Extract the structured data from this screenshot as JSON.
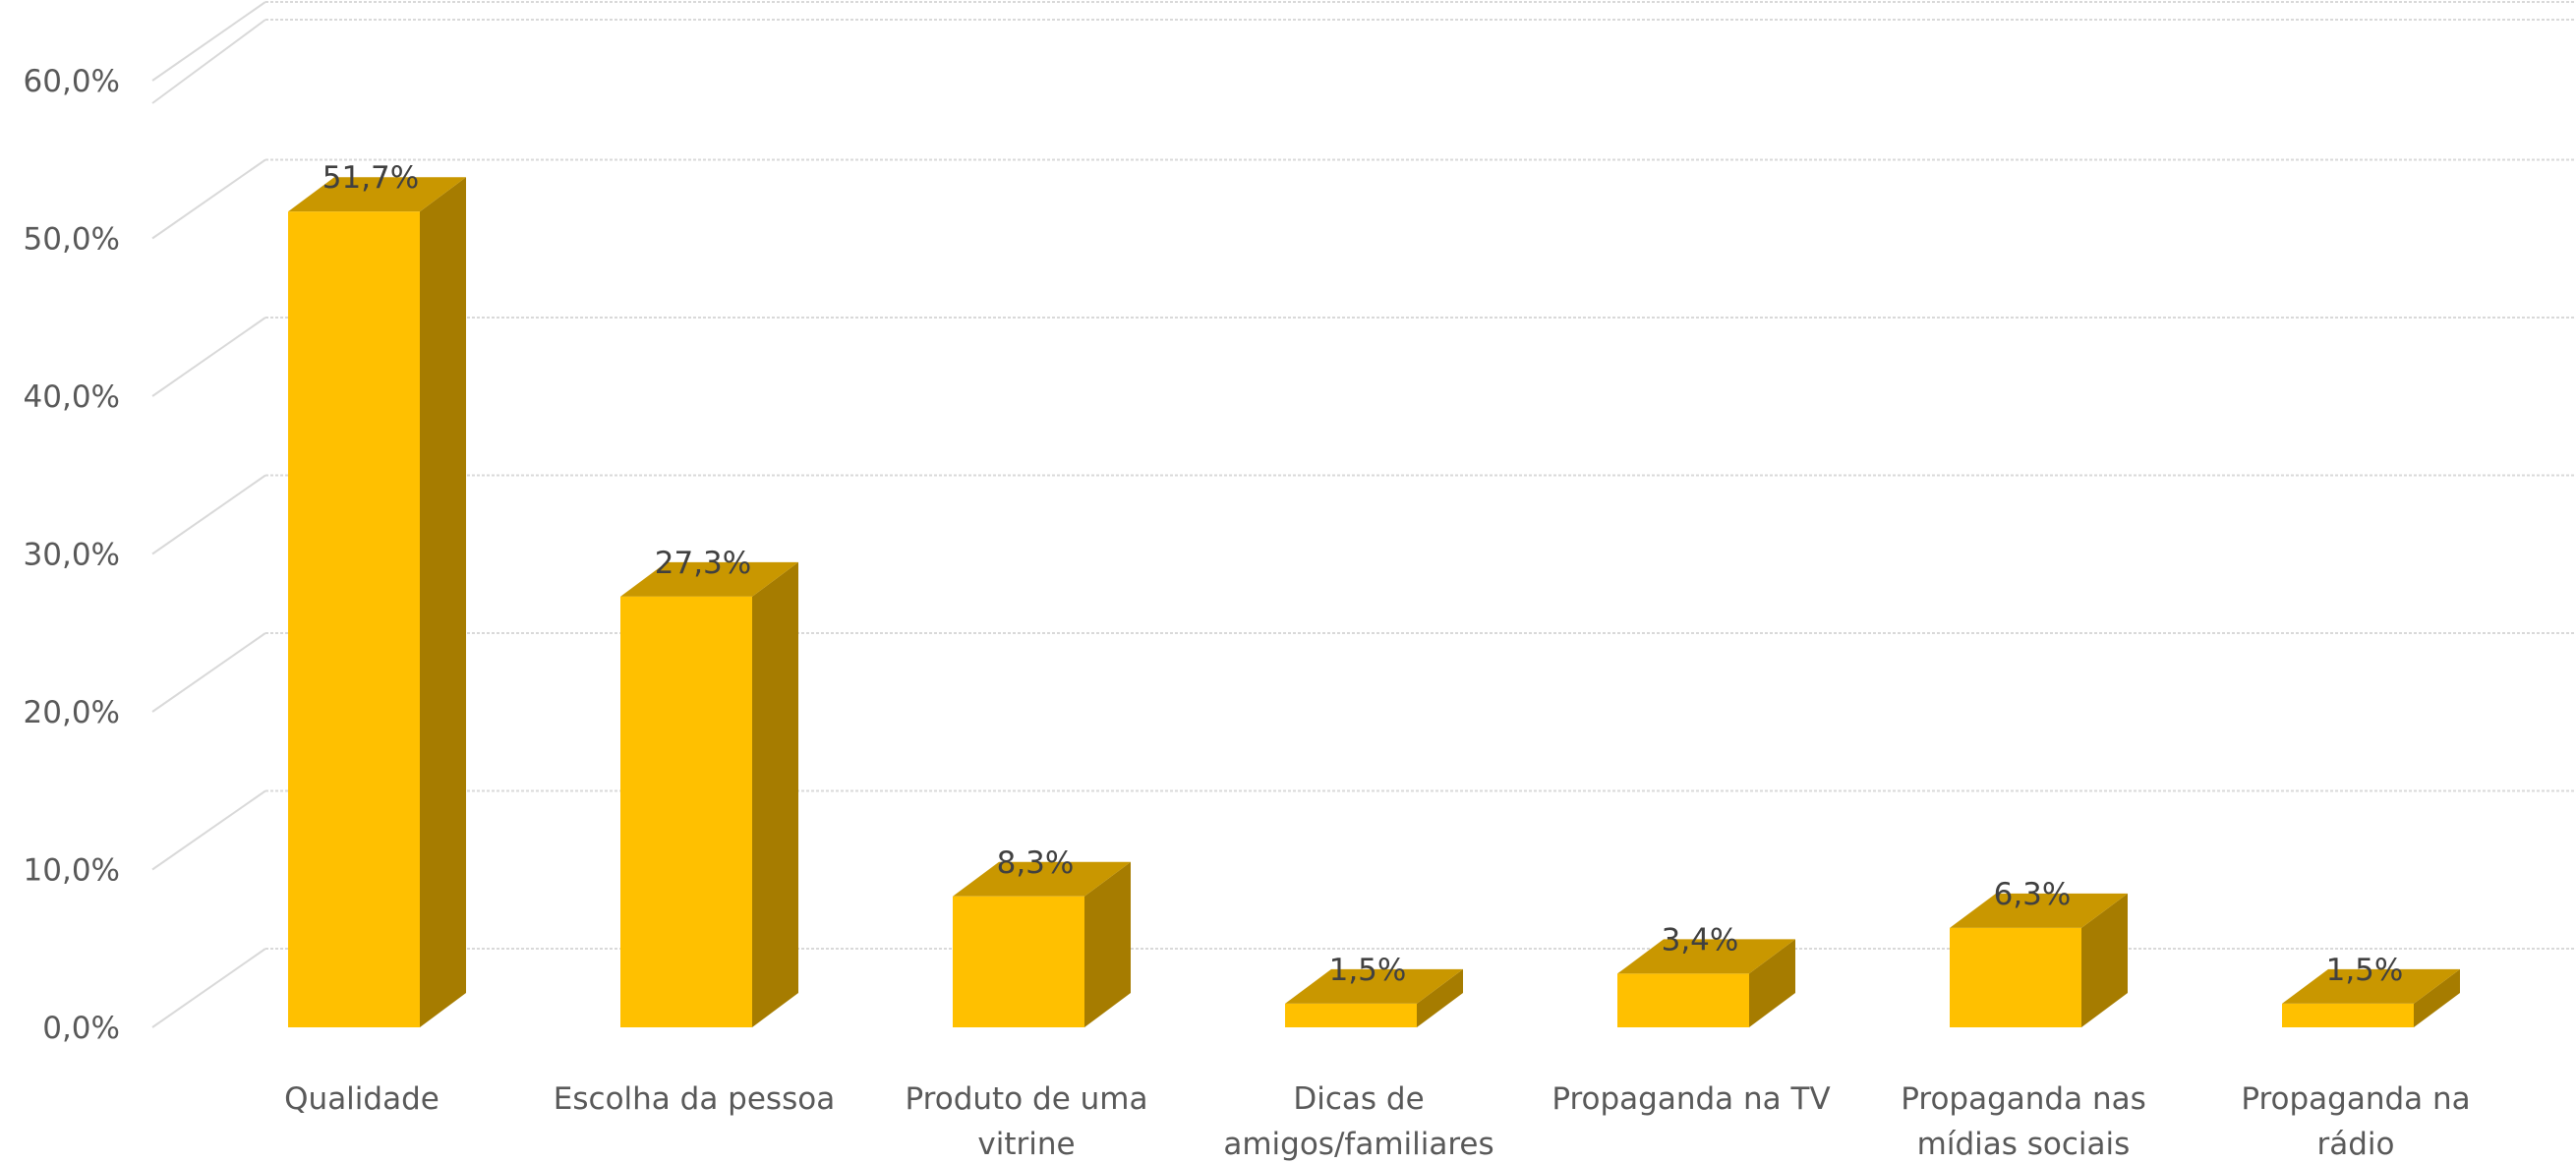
{
  "chart_data": {
    "type": "bar",
    "style": "3d-column",
    "categories": [
      [
        "Qualidade"
      ],
      [
        "Escolha da pessoa"
      ],
      [
        "Produto de uma",
        "vitrine"
      ],
      [
        "Dicas de",
        "amigos/familiares"
      ],
      [
        "Propaganda na TV"
      ],
      [
        "Propaganda nas",
        "mídias sociais"
      ],
      [
        "Propaganda na",
        "rádio"
      ]
    ],
    "values": [
      51.7,
      27.3,
      8.3,
      1.5,
      3.4,
      6.3,
      1.5
    ],
    "data_labels": [
      "51,7%",
      "27,3%",
      "8,3%",
      "1,5%",
      "3,4%",
      "6,3%",
      "1,5%"
    ],
    "y_ticks": [
      0,
      10,
      20,
      30,
      40,
      50,
      60
    ],
    "y_tick_labels": [
      "0,0%",
      "10,0%",
      "20,0%",
      "30,0%",
      "40,0%",
      "50,0%",
      "60,0%"
    ],
    "ylim": [
      0,
      60
    ],
    "grid": true,
    "legend": "none",
    "colors": {
      "bar_front": "#FFC000",
      "bar_top": "#C99700",
      "bar_side": "#A67C00"
    }
  }
}
